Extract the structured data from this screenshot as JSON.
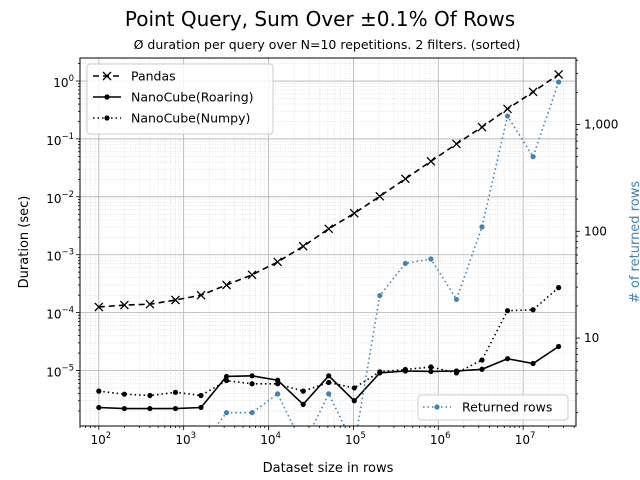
{
  "chart_data": {
    "type": "line",
    "title": "Point Query, Sum Over ±0.1% Of Rows",
    "subtitle": "Ø duration per query over N=10 repetitions. 2 filters. (sorted)",
    "xlabel": "Dataset size in rows",
    "ylabel": "Duration (sec)",
    "y2label": "# of returned rows",
    "xscale": "log",
    "yscale": "log",
    "y2scale": "log",
    "xlim": [
      60,
      42000000
    ],
    "ylim": [
      1.1e-06,
      2.5
    ],
    "y2lim": [
      1.5,
      4200
    ],
    "grid": true,
    "legend_position": "upper-left",
    "legend2_position": "lower-right",
    "x": [
      100,
      200,
      400,
      800,
      1600,
      3200,
      6400,
      12800,
      25600,
      51200,
      102400,
      204800,
      409600,
      819200,
      1638400,
      3276800,
      6553600,
      13107200,
      26214400
    ],
    "x_ticks": [
      {
        "value": 100,
        "mant": "10",
        "exp": "2"
      },
      {
        "value": 1000,
        "mant": "10",
        "exp": "3"
      },
      {
        "value": 10000,
        "mant": "10",
        "exp": "4"
      },
      {
        "value": 100000,
        "mant": "10",
        "exp": "5"
      },
      {
        "value": 1000000,
        "mant": "10",
        "exp": "6"
      },
      {
        "value": 10000000,
        "mant": "10",
        "exp": "7"
      }
    ],
    "y_ticks": [
      {
        "value": 1e-05,
        "mant": "10",
        "exp": "−5"
      },
      {
        "value": 0.0001,
        "mant": "10",
        "exp": "−4"
      },
      {
        "value": 0.001,
        "mant": "10",
        "exp": "−3"
      },
      {
        "value": 0.01,
        "mant": "10",
        "exp": "−2"
      },
      {
        "value": 0.1,
        "mant": "10",
        "exp": "−1"
      },
      {
        "value": 1,
        "mant": "10",
        "exp": "0"
      }
    ],
    "y2_ticks": [
      {
        "value": 10,
        "label": "10"
      },
      {
        "value": 100,
        "label": "100"
      },
      {
        "value": 1000,
        "label": "1,000"
      }
    ],
    "series": [
      {
        "name": "Pandas",
        "axis": "left",
        "color": "#000000",
        "dash": "6,4",
        "marker": "x",
        "values": [
          0.000125,
          0.000135,
          0.00014,
          0.000165,
          0.0002,
          0.0003,
          0.00045,
          0.00075,
          0.0014,
          0.0028,
          0.0052,
          0.0102,
          0.0205,
          0.041,
          0.082,
          0.16,
          0.33,
          0.65,
          1.3
        ]
      },
      {
        "name": "NanoCube(Roaring)",
        "axis": "left",
        "color": "#000000",
        "dash": "",
        "marker": "dot",
        "values": [
          2.3e-06,
          2.2e-06,
          2.2e-06,
          2.2e-06,
          2.3e-06,
          7.9e-06,
          8.1e-06,
          6.8e-06,
          2.6e-06,
          8.1e-06,
          3e-06,
          9.1e-06,
          9.8e-06,
          9.6e-06,
          9.8e-06,
          1.05e-05,
          1.6e-05,
          1.32e-05,
          2.6e-05
        ]
      },
      {
        "name": "NanoCube(Numpy)",
        "axis": "left",
        "color": "#000000",
        "dash": "1.5,3",
        "marker": "dot",
        "values": [
          4.4e-06,
          3.9e-06,
          3.7e-06,
          4.2e-06,
          3.7e-06,
          6.7e-06,
          5.9e-06,
          5.9e-06,
          4.4e-06,
          6.2e-06,
          5e-06,
          9.5e-06,
          1.04e-05,
          1.15e-05,
          9.1e-06,
          1.52e-05,
          0.000108,
          0.000112,
          0.00027
        ]
      },
      {
        "name": "Returned rows",
        "axis": "right",
        "color": "#4682b4",
        "dash": "1.5,3",
        "marker": "dot",
        "drop_to_floor": true,
        "values": [
          null,
          null,
          null,
          null,
          null,
          2,
          2,
          3,
          null,
          3,
          null,
          25,
          50,
          55,
          23,
          110,
          1200,
          500,
          2500
        ]
      }
    ]
  }
}
